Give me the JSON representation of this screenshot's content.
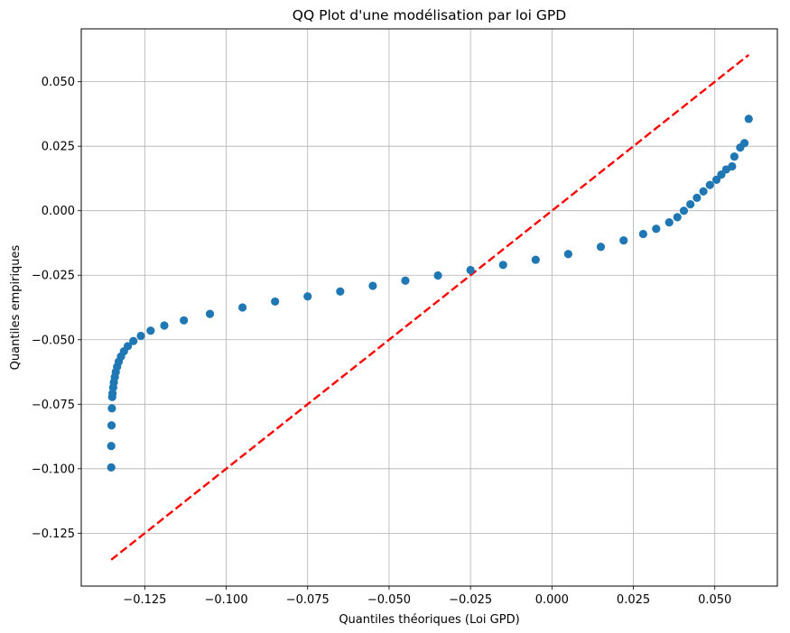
{
  "chart_data": {
    "type": "scatter",
    "title": "QQ Plot d'une modélisation par loi GPD",
    "xlabel": "Quantiles théoriques (Loi GPD)",
    "ylabel": "Quantiles empiriques",
    "xlim": [
      -0.1445,
      0.0692
    ],
    "ylim": [
      -0.1455,
      0.0705
    ],
    "xticks": [
      -0.125,
      -0.1,
      -0.075,
      -0.05,
      -0.025,
      0.0,
      0.025,
      0.05
    ],
    "xtick_labels": [
      "−0.125",
      "−0.100",
      "−0.075",
      "−0.050",
      "−0.025",
      "0.000",
      "0.025",
      "0.050"
    ],
    "yticks": [
      -0.125,
      -0.1,
      -0.075,
      -0.05,
      -0.025,
      0.0,
      0.025,
      0.05
    ],
    "ytick_labels": [
      "−0.125",
      "−0.100",
      "−0.075",
      "−0.050",
      "−0.025",
      "0.000",
      "0.025",
      "0.050"
    ],
    "grid": true,
    "series": [
      {
        "kind": "scatter",
        "color": "#1f77b4",
        "points": [
          [
            -0.1353,
            -0.0995
          ],
          [
            -0.1353,
            -0.0912
          ],
          [
            -0.1352,
            -0.0832
          ],
          [
            -0.1351,
            -0.0766
          ],
          [
            -0.135,
            -0.0722
          ],
          [
            -0.1349,
            -0.0708
          ],
          [
            -0.1347,
            -0.0685
          ],
          [
            -0.1345,
            -0.0665
          ],
          [
            -0.1342,
            -0.0645
          ],
          [
            -0.1339,
            -0.0625
          ],
          [
            -0.1335,
            -0.0605
          ],
          [
            -0.133,
            -0.0585
          ],
          [
            -0.1323,
            -0.0565
          ],
          [
            -0.1314,
            -0.0545
          ],
          [
            -0.1302,
            -0.0525
          ],
          [
            -0.1285,
            -0.0505
          ],
          [
            -0.1262,
            -0.0485
          ],
          [
            -0.1232,
            -0.0465
          ],
          [
            -0.119,
            -0.0445
          ],
          [
            -0.113,
            -0.0425
          ],
          [
            -0.105,
            -0.04
          ],
          [
            -0.095,
            -0.0375
          ],
          [
            -0.085,
            -0.0352
          ],
          [
            -0.075,
            -0.0332
          ],
          [
            -0.065,
            -0.0313
          ],
          [
            -0.055,
            -0.0291
          ],
          [
            -0.045,
            -0.0271
          ],
          [
            -0.035,
            -0.0251
          ],
          [
            -0.025,
            -0.023
          ],
          [
            -0.015,
            -0.021
          ],
          [
            -0.005,
            -0.019
          ],
          [
            0.005,
            -0.0168
          ],
          [
            0.015,
            -0.014
          ],
          [
            0.022,
            -0.0115
          ],
          [
            0.028,
            -0.009
          ],
          [
            0.032,
            -0.007
          ],
          [
            0.036,
            -0.0045
          ],
          [
            0.0385,
            -0.0025
          ],
          [
            0.0405,
            0.0
          ],
          [
            0.0425,
            0.0025
          ],
          [
            0.0445,
            0.005
          ],
          [
            0.0465,
            0.0075
          ],
          [
            0.0485,
            0.01
          ],
          [
            0.0505,
            0.012
          ],
          [
            0.052,
            0.014
          ],
          [
            0.0535,
            0.016
          ],
          [
            0.0553,
            0.0172
          ],
          [
            0.056,
            0.021
          ],
          [
            0.0578,
            0.0245
          ],
          [
            0.0591,
            0.0262
          ],
          [
            0.0604,
            0.0356
          ]
        ]
      },
      {
        "kind": "line",
        "style": "dashed",
        "color": "#ff0000",
        "points": [
          [
            -0.1353,
            -0.1353
          ],
          [
            0.0604,
            0.0604
          ]
        ]
      }
    ]
  }
}
